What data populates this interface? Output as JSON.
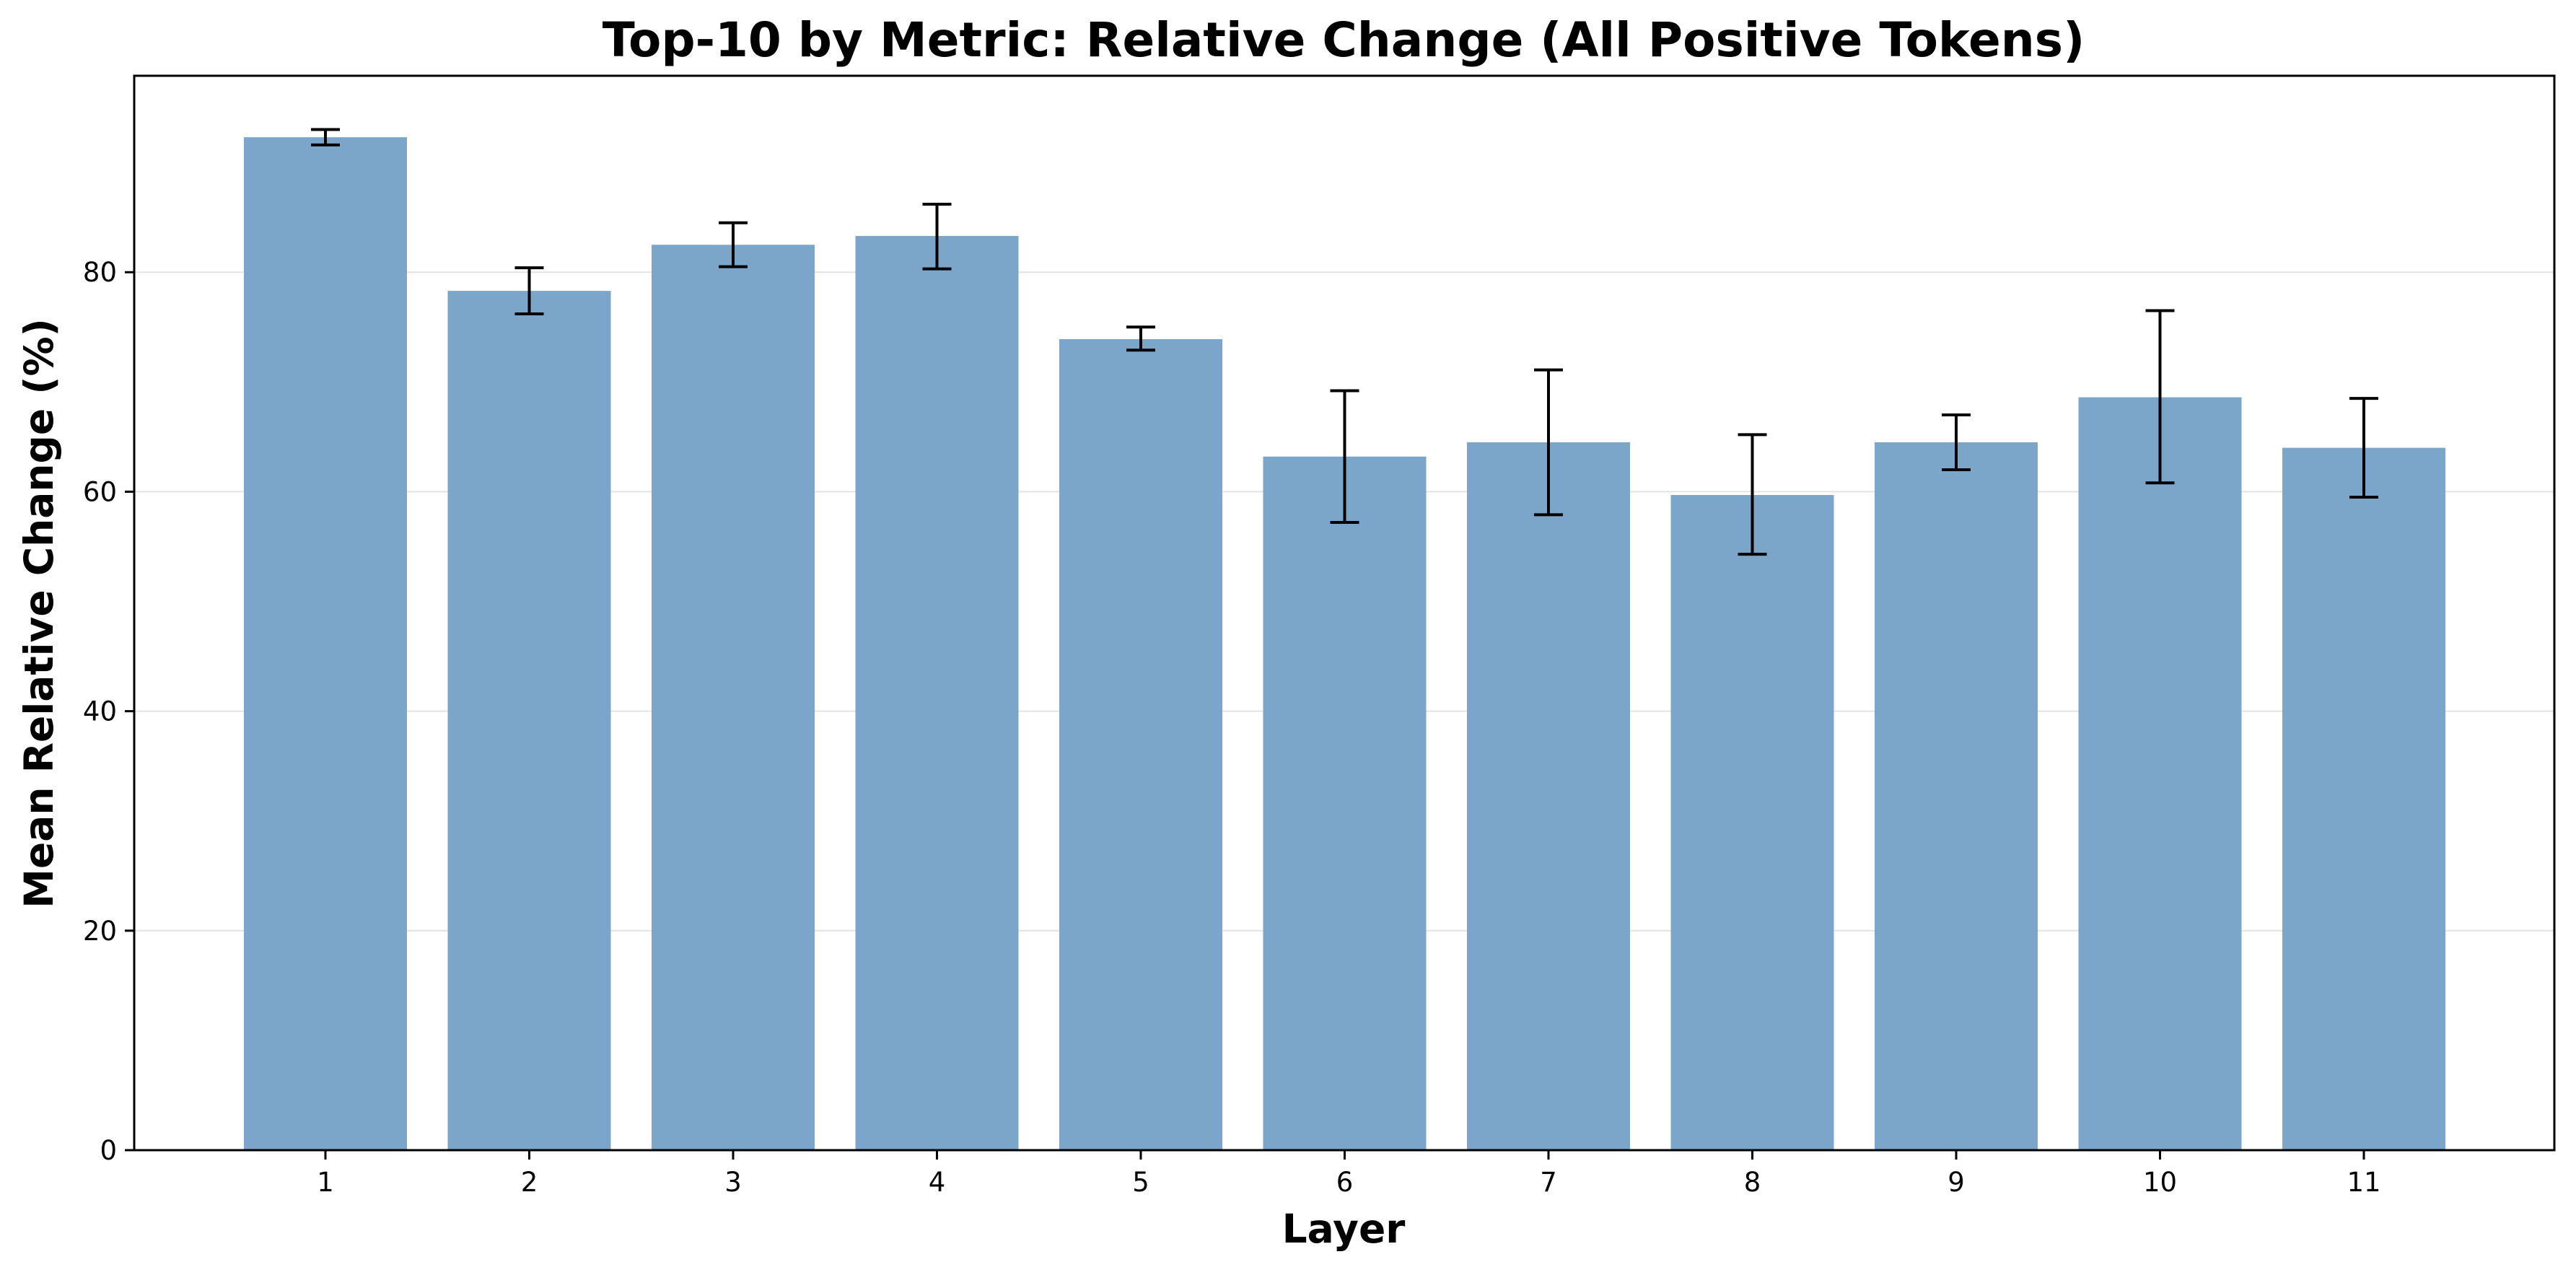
{
  "chart_data": {
    "type": "bar",
    "title": "Top-10 by Metric: Relative Change (All Positive Tokens)",
    "xlabel": "Layer",
    "ylabel": "Mean Relative Change (%)",
    "categories": [
      "1",
      "2",
      "3",
      "4",
      "5",
      "6",
      "7",
      "8",
      "9",
      "10",
      "11"
    ],
    "values": [
      92.3,
      78.3,
      82.5,
      83.3,
      73.9,
      63.2,
      64.5,
      59.7,
      64.5,
      68.6,
      64.0
    ],
    "error_low": [
      91.6,
      76.2,
      80.5,
      80.3,
      72.9,
      57.2,
      57.9,
      54.3,
      62.0,
      60.8,
      59.5
    ],
    "error_high": [
      93.0,
      80.4,
      84.5,
      86.2,
      75.0,
      69.2,
      71.1,
      65.2,
      67.0,
      76.5,
      68.5
    ],
    "yticks": [
      0,
      20,
      40,
      60,
      80
    ],
    "ylim": [
      0,
      97.9
    ],
    "grid": "y",
    "bar_color": "#7ba6ca",
    "errorbar_color": "#000000"
  }
}
